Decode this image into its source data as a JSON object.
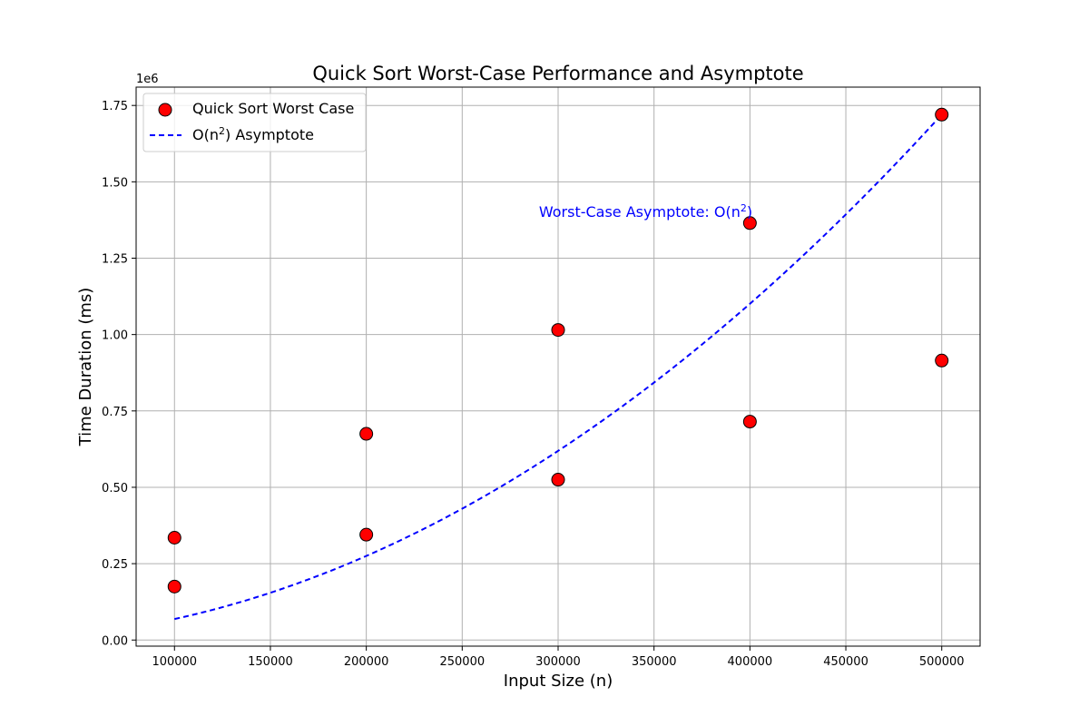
{
  "chart_data": {
    "type": "scatter",
    "title": "Quick Sort Worst-Case Performance and Asymptote",
    "xlabel": "Input Size (n)",
    "ylabel": "Time Duration (ms)",
    "y_offset_label": "1e6",
    "xlim": [
      80000,
      520000
    ],
    "ylim": [
      -20000,
      1810000
    ],
    "x_ticks": [
      100000,
      150000,
      200000,
      250000,
      300000,
      350000,
      400000,
      450000,
      500000
    ],
    "x_tick_labels": [
      "100000",
      "150000",
      "200000",
      "250000",
      "300000",
      "350000",
      "400000",
      "450000",
      "500000"
    ],
    "y_ticks": [
      0,
      250000,
      500000,
      750000,
      1000000,
      1250000,
      1500000,
      1750000
    ],
    "y_tick_labels": [
      "0.00",
      "0.25",
      "0.50",
      "0.75",
      "1.00",
      "1.25",
      "1.50",
      "1.75"
    ],
    "grid": true,
    "legend_position": "top-left",
    "series": [
      {
        "name": "Quick Sort Worst Case",
        "kind": "scatter",
        "color": "#ff0000",
        "edge_color": "#000000",
        "points": [
          {
            "x": 100000,
            "y": 175000
          },
          {
            "x": 100000,
            "y": 335000
          },
          {
            "x": 200000,
            "y": 345000
          },
          {
            "x": 200000,
            "y": 675000
          },
          {
            "x": 300000,
            "y": 525000
          },
          {
            "x": 300000,
            "y": 1015000
          },
          {
            "x": 400000,
            "y": 715000
          },
          {
            "x": 400000,
            "y": 1365000
          },
          {
            "x": 500000,
            "y": 915000
          },
          {
            "x": 500000,
            "y": 1720000
          }
        ]
      },
      {
        "name_prefix": "O(n",
        "name_sup": "2",
        "name_suffix": ") Asymptote",
        "kind": "line",
        "style": "dashed",
        "color": "#0000ff",
        "formula_coefficient": 6.88e-06,
        "x_range": [
          100000,
          500000
        ]
      }
    ],
    "annotation": {
      "prefix": "Worst-Case Asymptote: O(n",
      "sup": "2",
      "suffix": ")",
      "x": 290000,
      "y": 1385000,
      "color": "#0000ff"
    }
  }
}
